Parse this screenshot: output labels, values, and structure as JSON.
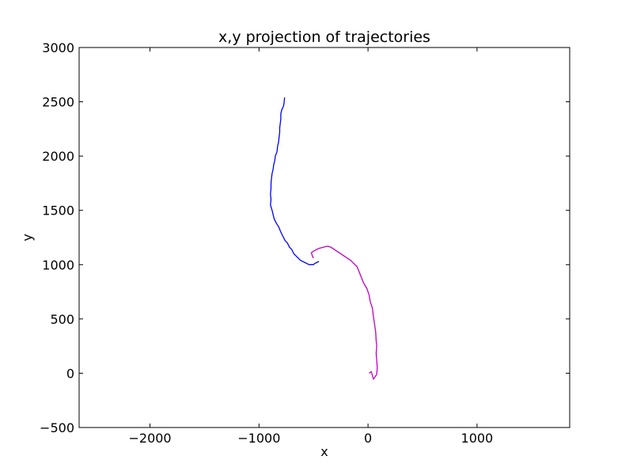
{
  "chart_data": {
    "type": "line",
    "title": "x,y projection of trajectories",
    "xlabel": "x",
    "ylabel": "y",
    "xlim": [
      -2650,
      1850
    ],
    "ylim": [
      -500,
      3000
    ],
    "xticks": [
      -2000,
      -1000,
      0,
      1000
    ],
    "xtick_labels": [
      "−2000",
      "−1000",
      "0",
      "1000"
    ],
    "yticks": [
      -500,
      0,
      500,
      1000,
      1500,
      2000,
      2500,
      3000
    ],
    "ytick_labels": [
      "−500",
      "0",
      "500",
      "1000",
      "1500",
      "2000",
      "2500",
      "3000"
    ],
    "grid": false,
    "legend": "none",
    "series": [
      {
        "color": "#0000ff",
        "x": [
          -765,
          -770,
          -775,
          -790,
          -800,
          -800,
          -805,
          -810,
          -810,
          -815,
          -820,
          -830,
          -835,
          -850,
          -855,
          -865,
          -870,
          -880,
          -885,
          -890,
          -890,
          -895,
          -890,
          -895,
          -880,
          -870,
          -860,
          -840,
          -820,
          -800,
          -780,
          -760,
          -740,
          -720,
          -700,
          -680,
          -660,
          -640,
          -620,
          -600,
          -580,
          -560,
          -540,
          -520,
          -500,
          -490,
          -470,
          -450
        ],
        "y": [
          2540,
          2490,
          2460,
          2430,
          2390,
          2340,
          2300,
          2260,
          2220,
          2180,
          2130,
          2090,
          2040,
          2000,
          1960,
          1920,
          1880,
          1840,
          1800,
          1750,
          1700,
          1650,
          1600,
          1550,
          1500,
          1460,
          1420,
          1380,
          1350,
          1300,
          1260,
          1220,
          1200,
          1160,
          1140,
          1100,
          1080,
          1060,
          1040,
          1030,
          1020,
          1010,
          1000,
          1000,
          1000,
          1010,
          1020,
          1030
        ]
      },
      {
        "color": "#bf00bf",
        "x": [
          10,
          30,
          50,
          80,
          85,
          80,
          75,
          80,
          75,
          70,
          60,
          50,
          40,
          20,
          10,
          -10,
          -40,
          -60,
          -80,
          -100,
          -130,
          -160,
          -190,
          -220,
          -250,
          -280,
          -310,
          -340,
          -370,
          -410,
          -450,
          -490,
          -520,
          -510,
          -500
        ],
        "y": [
          0,
          15,
          -55,
          -10,
          50,
          120,
          180,
          250,
          300,
          380,
          450,
          520,
          600,
          660,
          720,
          780,
          830,
          880,
          930,
          980,
          1010,
          1040,
          1060,
          1080,
          1100,
          1120,
          1140,
          1160,
          1170,
          1160,
          1150,
          1130,
          1110,
          1080,
          1060
        ]
      }
    ]
  }
}
